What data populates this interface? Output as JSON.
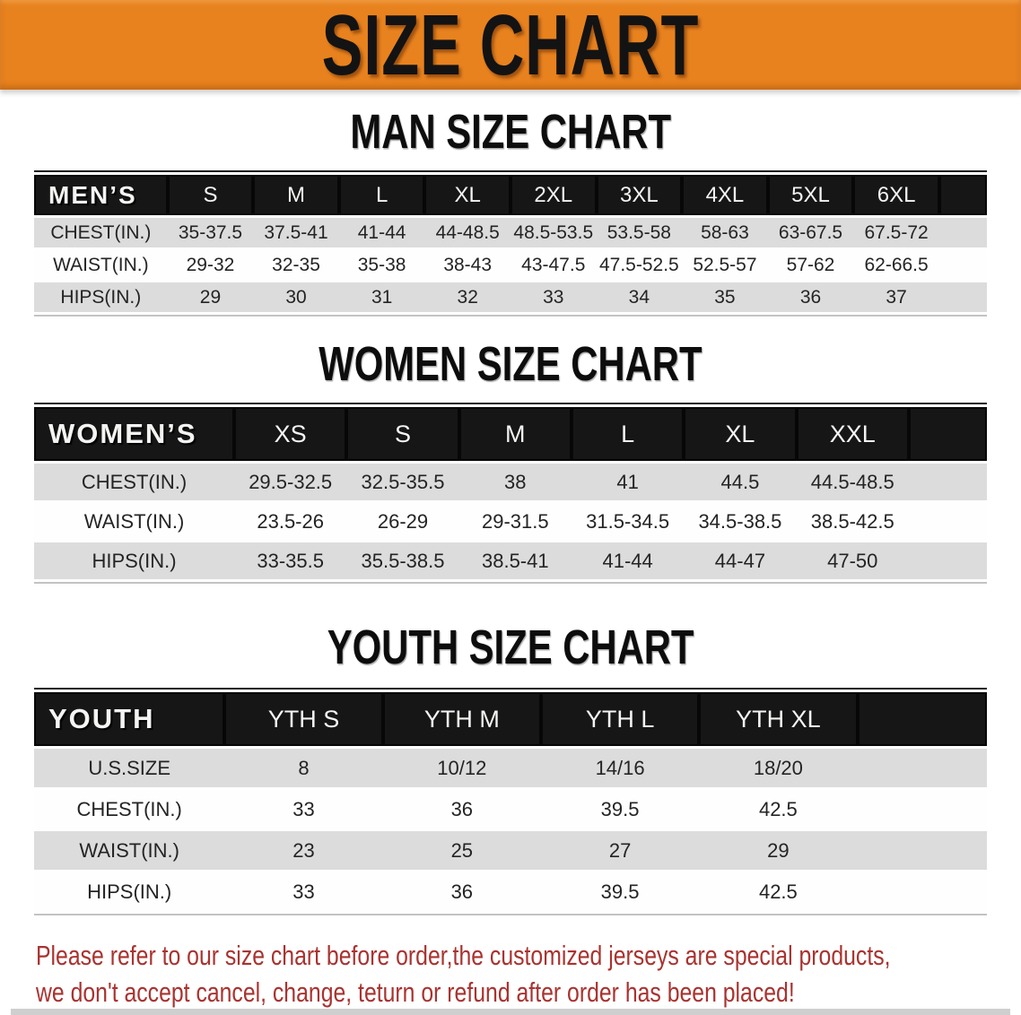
{
  "banner": {
    "title": "SIZE CHART"
  },
  "colors": {
    "accent_orange": "#E8821E",
    "header_black": "#161616",
    "row_gray": "#DCDCDC",
    "note_red": "#A93330"
  },
  "men": {
    "heading": "MAN SIZE CHART",
    "label": "MEN’S",
    "sizes": [
      "S",
      "M",
      "L",
      "XL",
      "2XL",
      "3XL",
      "4XL",
      "5XL",
      "6XL"
    ],
    "rows": [
      {
        "label": "CHEST(IN.)",
        "values": [
          "35-37.5",
          "37.5-41",
          "41-44",
          "44-48.5",
          "48.5-53.5",
          "53.5-58",
          "58-63",
          "63-67.5",
          "67.5-72"
        ]
      },
      {
        "label": "WAIST(IN.)",
        "values": [
          "29-32",
          "32-35",
          "35-38",
          "38-43",
          "43-47.5",
          "47.5-52.5",
          "52.5-57",
          "57-62",
          "62-66.5"
        ]
      },
      {
        "label": "HIPS(IN.)",
        "values": [
          "29",
          "30",
          "31",
          "32",
          "33",
          "34",
          "35",
          "36",
          "37"
        ]
      }
    ]
  },
  "women": {
    "heading": "WOMEN SIZE CHART",
    "label": "WOMEN’S",
    "sizes": [
      "XS",
      "S",
      "M",
      "L",
      "XL",
      "XXL"
    ],
    "rows": [
      {
        "label": "CHEST(IN.)",
        "values": [
          "29.5-32.5",
          "32.5-35.5",
          "38",
          "41",
          "44.5",
          "44.5-48.5"
        ]
      },
      {
        "label": "WAIST(IN.)",
        "values": [
          "23.5-26",
          "26-29",
          "29-31.5",
          "31.5-34.5",
          "34.5-38.5",
          "38.5-42.5"
        ]
      },
      {
        "label": "HIPS(IN.)",
        "values": [
          "33-35.5",
          "35.5-38.5",
          "38.5-41",
          "41-44",
          "44-47",
          "47-50"
        ]
      }
    ]
  },
  "youth": {
    "heading": "YOUTH SIZE CHART",
    "label": "YOUTH",
    "sizes": [
      "YTH S",
      "YTH M",
      "YTH L",
      "YTH XL"
    ],
    "rows": [
      {
        "label": "U.S.SIZE",
        "values": [
          "8",
          "10/12",
          "14/16",
          "18/20"
        ]
      },
      {
        "label": "CHEST(IN.)",
        "values": [
          "33",
          "36",
          "39.5",
          "42.5"
        ]
      },
      {
        "label": "WAIST(IN.)",
        "values": [
          "23",
          "25",
          "27",
          "29"
        ]
      },
      {
        "label": "HIPS(IN.)",
        "values": [
          "33",
          "36",
          "39.5",
          "42.5"
        ]
      }
    ]
  },
  "footnote": {
    "line1": "Please refer to our size chart before order,the customized jerseys are special products,",
    "line2": "we don't accept cancel, change, teturn or refund after order has been placed!"
  }
}
